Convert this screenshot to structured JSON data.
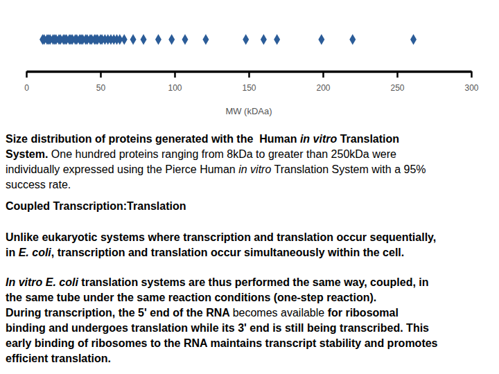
{
  "chart_data": {
    "type": "strip",
    "x_label": "MW (kDAa)",
    "values": [
      11,
      12,
      14,
      15,
      16,
      18,
      19,
      20,
      22,
      23,
      25,
      26,
      27,
      29,
      30,
      31,
      33,
      34,
      36,
      37,
      38,
      40,
      41,
      43,
      44,
      46,
      47,
      48,
      50,
      51,
      53,
      55,
      57,
      59,
      61,
      63,
      66,
      72,
      79,
      89,
      98,
      107,
      121,
      148,
      160,
      169,
      199,
      220,
      261
    ],
    "xlim": [
      0,
      300
    ],
    "xticks": [
      0,
      50,
      100,
      150,
      200,
      250,
      300
    ],
    "color": "#2b5c98",
    "marker": "diamond",
    "tick_labels": "x"
  },
  "document": {
    "paragraphs": [
      {
        "lines": [
          [
            {
              "text": "Size distribution of proteins generated with the  Human ",
              "style": "bold"
            },
            {
              "text": "in vitro",
              "style": "bold-italic"
            },
            {
              "text": " Translation",
              "style": "bold"
            }
          ],
          [
            {
              "text": "System.",
              "style": "bold"
            },
            {
              "text": " One hundred proteins ranging from 8kDa to greater than 250kDa were",
              "style": "normal"
            }
          ],
          [
            {
              "text": "individually expressed using the Pierce Human ",
              "style": "normal"
            },
            {
              "text": "in vitro",
              "style": "italic"
            },
            {
              "text": " Translation System with a 95%",
              "style": "normal"
            }
          ],
          [
            {
              "text": "success rate.",
              "style": "normal"
            }
          ]
        ]
      },
      {
        "lines": [
          [
            {
              "text": "Coupled Transcription:Translation",
              "style": "bold"
            }
          ]
        ]
      },
      {
        "lines": [
          [
            {
              "text": "Unlike eukaryotic systems where transcription and translation occur sequentially,",
              "style": "bold"
            }
          ],
          [
            {
              "text": "in ",
              "style": "bold"
            },
            {
              "text": "E. coli",
              "style": "bold-italic"
            },
            {
              "text": ", transcription and translation occur simultaneously within the cell.",
              "style": "bold"
            }
          ]
        ]
      },
      {
        "lines": [
          [
            {
              "text": "In vitro",
              "style": "bold-italic"
            },
            {
              "text": " ",
              "style": "bold"
            },
            {
              "text": "E. coli",
              "style": "bold-italic"
            },
            {
              "text": " translation systems are thus performed the same way, coupled, in",
              "style": "bold"
            }
          ],
          [
            {
              "text": "the same tube under the same reaction conditions (one-step reaction).",
              "style": "bold"
            }
          ],
          [
            {
              "text": "During transcription, the 5' end of the RNA ",
              "style": "bold"
            },
            {
              "text": "becomes available",
              "style": "normal"
            },
            {
              "text": " for ribosomal",
              "style": "bold"
            }
          ],
          [
            {
              "text": "binding and undergoes translation while its 3' end is still being transcribed. This",
              "style": "bold"
            }
          ],
          [
            {
              "text": "early binding of ribosomes to the RNA maintains transcript stability and promotes",
              "style": "bold"
            }
          ],
          [
            {
              "text": "efficient translation.",
              "style": "bold"
            }
          ]
        ]
      }
    ]
  }
}
